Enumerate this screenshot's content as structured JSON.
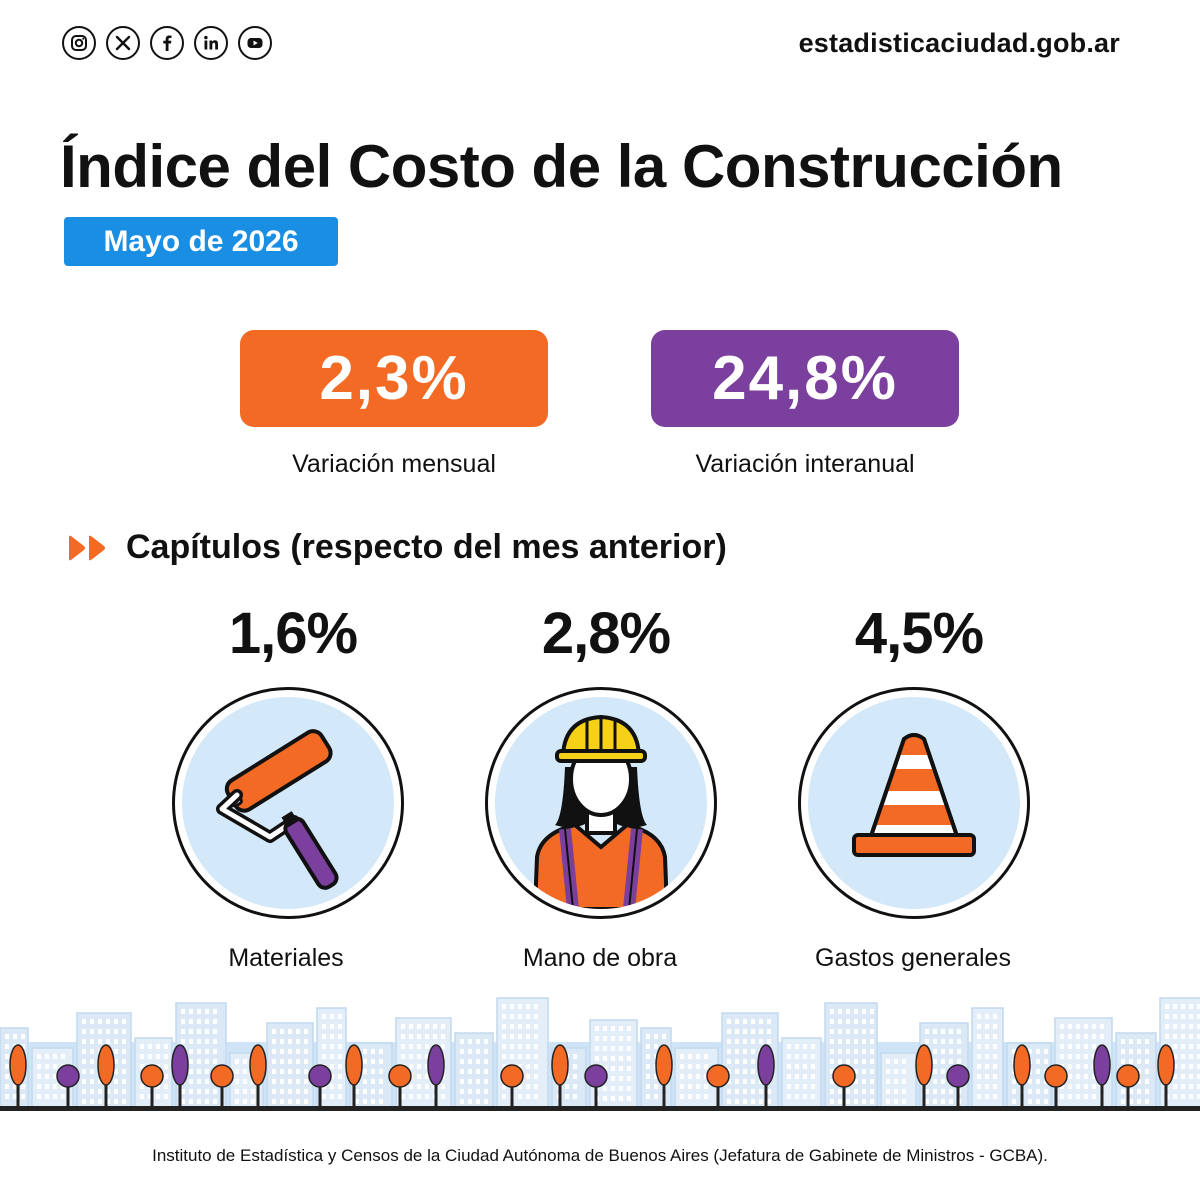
{
  "header": {
    "social_icons": [
      "instagram-icon",
      "x-icon",
      "facebook-icon",
      "linkedin-icon",
      "youtube-icon"
    ],
    "site_url": "estadisticaciudad.gob.ar"
  },
  "title": "Índice del Costo de la Construcción",
  "date_badge": "Mayo de 2026",
  "kpis": [
    {
      "value": "2,3%",
      "label": "Variación mensual",
      "color": "#f26a24"
    },
    {
      "value": "24,8%",
      "label": "Variación interanual",
      "color": "#7b3f9e"
    }
  ],
  "section": {
    "title": "Capítulos (respecto del mes anterior)",
    "icon": "double-chevron-right-icon"
  },
  "chapters": [
    {
      "value": "1,6%",
      "label": "Materiales",
      "icon": "paint-roller-icon"
    },
    {
      "value": "2,8%",
      "label": "Mano de obra",
      "icon": "construction-worker-icon"
    },
    {
      "value": "4,5%",
      "label": "Gastos generales",
      "icon": "traffic-cone-icon"
    }
  ],
  "colors": {
    "orange": "#f26a24",
    "purple": "#7b3f9e",
    "blue": "#1a8ee3",
    "light_blue": "#d3e8f8",
    "yellow": "#f7d117"
  },
  "footer": "Instituto de Estadística y Censos de la Ciudad Autónoma de Buenos Aires (Jefatura de Gabinete de Ministros - GCBA)."
}
